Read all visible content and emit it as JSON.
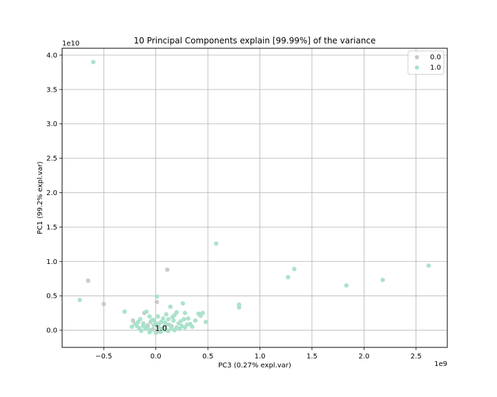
{
  "chart_data": {
    "type": "scatter",
    "title": "10 Principal Components explain [99.99%] of the variance",
    "xlabel": "PC3 (0.27% expl.var)",
    "ylabel": "PC1 (99.2% expl.var)",
    "x_offset_label": "1e9",
    "y_offset_label": "1e10",
    "xlim": [
      -0.9,
      2.8
    ],
    "ylim": [
      -0.25,
      4.1
    ],
    "x_ticks": [
      -0.5,
      0.0,
      0.5,
      1.0,
      1.5,
      2.0,
      2.5
    ],
    "x_tick_labels": [
      "−0.5",
      "0.0",
      "0.5",
      "1.0",
      "1.5",
      "2.0",
      "2.5"
    ],
    "y_ticks": [
      0.0,
      0.5,
      1.0,
      1.5,
      2.0,
      2.5,
      3.0,
      3.5,
      4.0
    ],
    "y_tick_labels": [
      "0.0",
      "0.5",
      "1.0",
      "1.5",
      "2.0",
      "2.5",
      "3.0",
      "3.5",
      "4.0"
    ],
    "grid": true,
    "legend_position": "top-right",
    "annotation": {
      "text": "1.0",
      "x": 0.05,
      "y": 0.03
    },
    "series": [
      {
        "name": "0.0",
        "color": "#c8c8c8",
        "points": [
          [
            -0.65,
            0.72
          ],
          [
            -0.5,
            0.38
          ],
          [
            0.11,
            0.88
          ],
          [
            0.01,
            0.41
          ],
          [
            -0.22,
            0.14
          ],
          [
            -0.11,
            0.25
          ],
          [
            -0.05,
            0.12
          ],
          [
            0.02,
            0.05
          ],
          [
            0.06,
            0.02
          ],
          [
            -0.03,
            0.01
          ],
          [
            0.1,
            0.08
          ],
          [
            0.15,
            0.06
          ],
          [
            -0.08,
            0.07
          ],
          [
            0.03,
            -0.02
          ]
        ]
      },
      {
        "name": "1.0",
        "color": "#a8e0c8",
        "points": [
          [
            -0.6,
            3.9
          ],
          [
            0.58,
            1.26
          ],
          [
            1.33,
            0.89
          ],
          [
            1.27,
            0.77
          ],
          [
            1.83,
            0.65
          ],
          [
            2.18,
            0.73
          ],
          [
            2.62,
            0.94
          ],
          [
            -0.73,
            0.44
          ],
          [
            0.8,
            0.37
          ],
          [
            0.8,
            0.33
          ],
          [
            0.01,
            0.49
          ],
          [
            0.26,
            0.39
          ],
          [
            0.14,
            0.34
          ],
          [
            0.41,
            0.24
          ],
          [
            0.43,
            0.21
          ],
          [
            0.45,
            0.25
          ],
          [
            0.48,
            0.12
          ],
          [
            0.38,
            0.14
          ],
          [
            0.28,
            0.25
          ],
          [
            0.2,
            0.26
          ],
          [
            0.18,
            0.22
          ],
          [
            0.1,
            0.23
          ],
          [
            -0.09,
            0.27
          ],
          [
            -0.3,
            0.27
          ],
          [
            -0.15,
            0.16
          ],
          [
            -0.23,
            0.05
          ],
          [
            -0.2,
            0.09
          ],
          [
            -0.17,
            0.12
          ],
          [
            -0.12,
            0.1
          ],
          [
            -0.06,
            0.2
          ],
          [
            -0.04,
            0.14
          ],
          [
            0.0,
            0.1
          ],
          [
            0.05,
            0.12
          ],
          [
            0.12,
            0.16
          ],
          [
            0.17,
            0.14
          ],
          [
            0.22,
            0.1
          ],
          [
            0.27,
            0.16
          ],
          [
            0.3,
            0.08
          ],
          [
            0.25,
            0.06
          ],
          [
            0.2,
            0.04
          ],
          [
            0.15,
            0.03
          ],
          [
            0.1,
            0.0
          ],
          [
            0.05,
            -0.02
          ],
          [
            0.0,
            -0.04
          ],
          [
            -0.05,
            0.0
          ],
          [
            -0.1,
            0.02
          ],
          [
            -0.14,
            -0.01
          ],
          [
            -0.18,
            0.06
          ],
          [
            -0.08,
            0.04
          ],
          [
            -0.02,
            0.07
          ],
          [
            0.03,
            0.09
          ],
          [
            0.08,
            0.05
          ],
          [
            0.13,
            0.08
          ],
          [
            0.18,
            0.0
          ],
          [
            0.23,
            0.02
          ],
          [
            0.28,
            0.04
          ],
          [
            0.33,
            0.09
          ],
          [
            -0.12,
            0.06
          ],
          [
            -0.06,
            -0.03
          ],
          [
            0.07,
            0.17
          ],
          [
            0.02,
            0.2
          ],
          [
            0.24,
            0.13
          ],
          [
            0.31,
            0.17
          ],
          [
            0.35,
            0.05
          ],
          [
            -0.16,
            0.03
          ],
          [
            0.09,
            0.11
          ],
          [
            0.16,
            0.19
          ],
          [
            -0.02,
            0.15
          ],
          [
            0.04,
            0.02
          ],
          [
            0.12,
            -0.01
          ]
        ]
      }
    ]
  }
}
